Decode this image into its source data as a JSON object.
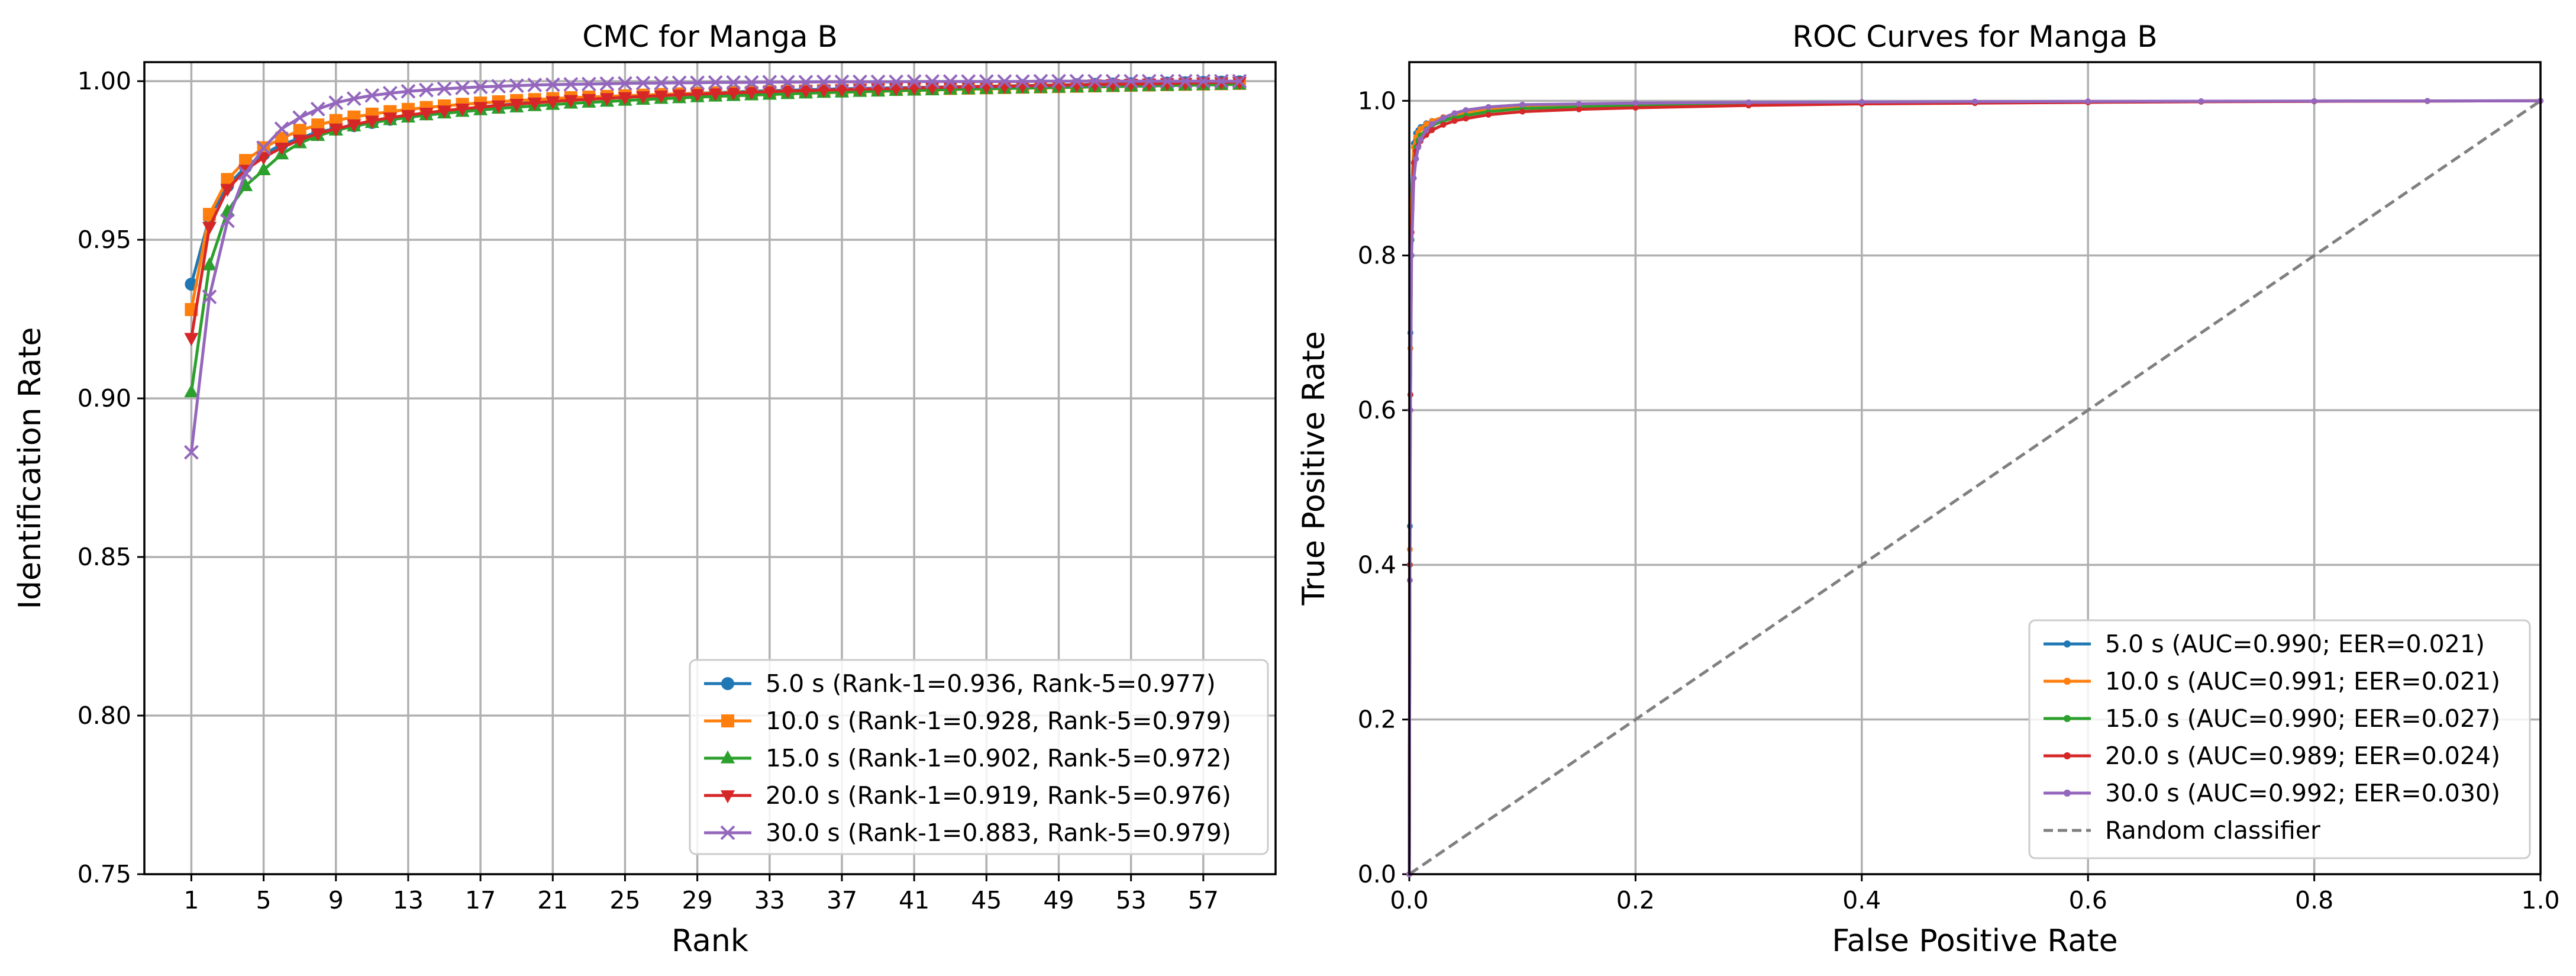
{
  "chart_data": [
    {
      "type": "line",
      "title": "CMC for Manga B",
      "xlabel": "Rank",
      "ylabel": "Identification Rate",
      "xlim": [
        -1.6,
        61.0
      ],
      "ylim": [
        0.75,
        1.006
      ],
      "xticks": [
        1,
        5,
        9,
        13,
        17,
        21,
        25,
        29,
        33,
        37,
        41,
        45,
        49,
        53,
        57
      ],
      "yticks": [
        0.75,
        0.8,
        0.85,
        0.9,
        0.95,
        1.0
      ],
      "ytick_labels": [
        "0.75",
        "0.80",
        "0.85",
        "0.90",
        "0.95",
        "1.00"
      ],
      "grid": true,
      "legend_position": "lower-right",
      "x": [
        1,
        2,
        3,
        4,
        5,
        6,
        7,
        8,
        9,
        10,
        11,
        12,
        13,
        14,
        15,
        16,
        17,
        18,
        19,
        20,
        21,
        22,
        23,
        24,
        25,
        26,
        27,
        28,
        29,
        30,
        31,
        32,
        33,
        34,
        35,
        36,
        37,
        38,
        39,
        40,
        41,
        42,
        43,
        44,
        45,
        46,
        47,
        48,
        49,
        50,
        51,
        52,
        53,
        54,
        55,
        56,
        57,
        58,
        59
      ],
      "series": [
        {
          "name": "5.0 s (Rank-1=0.936, Rank-5=0.977)",
          "color": "#1f77b4",
          "marker": "circle",
          "values": [
            0.936,
            0.957,
            0.967,
            0.973,
            0.977,
            0.98,
            0.982,
            0.984,
            0.985,
            0.986,
            0.987,
            0.988,
            0.989,
            0.9898,
            0.9905,
            0.9912,
            0.9918,
            0.9924,
            0.9929,
            0.9934,
            0.9938,
            0.9942,
            0.9946,
            0.9949,
            0.9952,
            0.9955,
            0.9958,
            0.996,
            0.9962,
            0.9964,
            0.9966,
            0.9968,
            0.997,
            0.9971,
            0.9973,
            0.9974,
            0.9976,
            0.9977,
            0.9978,
            0.9979,
            0.998,
            0.9981,
            0.9982,
            0.9983,
            0.9984,
            0.9985,
            0.9986,
            0.9987,
            0.9988,
            0.9989,
            0.999,
            0.9991,
            0.9992,
            0.9993,
            0.9994,
            0.9995,
            0.9996,
            0.9997,
            0.9998
          ]
        },
        {
          "name": "10.0 s (Rank-1=0.928, Rank-5=0.979)",
          "color": "#ff7f0e",
          "marker": "square",
          "values": [
            0.928,
            0.958,
            0.969,
            0.975,
            0.979,
            0.982,
            0.9845,
            0.9862,
            0.9876,
            0.9887,
            0.9896,
            0.9904,
            0.9911,
            0.9917,
            0.9922,
            0.9927,
            0.9931,
            0.9935,
            0.9939,
            0.9942,
            0.9945,
            0.9948,
            0.995,
            0.9952,
            0.9954,
            0.9956,
            0.9958,
            0.996,
            0.9961,
            0.9963,
            0.9964,
            0.9965,
            0.9967,
            0.9968,
            0.9969,
            0.997,
            0.9971,
            0.9972,
            0.9973,
            0.9974,
            0.9975,
            0.9976,
            0.9977,
            0.9978,
            0.9979,
            0.998,
            0.9981,
            0.9982,
            0.9983,
            0.9984,
            0.9985,
            0.9986,
            0.9987,
            0.9988,
            0.9989,
            0.999,
            0.9991,
            0.9992,
            0.9993
          ]
        },
        {
          "name": "15.0 s (Rank-1=0.902, Rank-5=0.972)",
          "color": "#2ca02c",
          "marker": "triangle-up",
          "values": [
            0.902,
            0.942,
            0.959,
            0.967,
            0.972,
            0.977,
            0.9805,
            0.9828,
            0.9845,
            0.9858,
            0.9869,
            0.9878,
            0.9886,
            0.9893,
            0.9899,
            0.9904,
            0.9909,
            0.9914,
            0.9918,
            0.9922,
            0.9926,
            0.993,
            0.9933,
            0.9936,
            0.9939,
            0.9942,
            0.9945,
            0.9947,
            0.995,
            0.9952,
            0.9954,
            0.9956,
            0.9958,
            0.996,
            0.9962,
            0.9964,
            0.9965,
            0.9967,
            0.9968,
            0.997,
            0.9971,
            0.9972,
            0.9974,
            0.9975,
            0.9976,
            0.9977,
            0.9978,
            0.9979,
            0.998,
            0.9981,
            0.9982,
            0.9983,
            0.9984,
            0.9985,
            0.9986,
            0.9987,
            0.9988,
            0.9989,
            0.999
          ]
        },
        {
          "name": "20.0 s (Rank-1=0.919, Rank-5=0.976)",
          "color": "#d62728",
          "marker": "triangle-down",
          "values": [
            0.919,
            0.954,
            0.966,
            0.972,
            0.976,
            0.979,
            0.9815,
            0.9835,
            0.985,
            0.9863,
            0.9875,
            0.9885,
            0.9893,
            0.99,
            0.9907,
            0.9913,
            0.9918,
            0.9923,
            0.9928,
            0.9932,
            0.9936,
            0.994,
            0.9943,
            0.9946,
            0.9949,
            0.9952,
            0.9954,
            0.9957,
            0.9959,
            0.9961,
            0.9963,
            0.9965,
            0.9967,
            0.9969,
            0.997,
            0.9972,
            0.9973,
            0.9975,
            0.9976,
            0.9977,
            0.9979,
            0.998,
            0.9981,
            0.9982,
            0.9983,
            0.9984,
            0.9985,
            0.9986,
            0.9987,
            0.9988,
            0.9989,
            0.999,
            0.9991,
            0.9992,
            0.9993,
            0.9994,
            0.9995,
            0.9996,
            0.9997
          ]
        },
        {
          "name": "30.0 s (Rank-1=0.883, Rank-5=0.979)",
          "color": "#9467bd",
          "marker": "x",
          "values": [
            0.883,
            0.932,
            0.956,
            0.971,
            0.979,
            0.985,
            0.9885,
            0.9912,
            0.9932,
            0.9945,
            0.9955,
            0.9962,
            0.9968,
            0.9972,
            0.9976,
            0.9979,
            0.9982,
            0.9984,
            0.9986,
            0.9988,
            0.9989,
            0.999,
            0.9991,
            0.9992,
            0.9993,
            0.9994,
            0.9994,
            0.9995,
            0.9995,
            0.9996,
            0.9996,
            0.9996,
            0.9997,
            0.9997,
            0.9997,
            0.9998,
            0.9998,
            0.9998,
            0.9998,
            0.9998,
            0.9999,
            0.9999,
            0.9999,
            0.9999,
            0.9999,
            0.9999,
            0.9999,
            1.0,
            1.0,
            1.0,
            1.0,
            1.0,
            1.0,
            1.0,
            1.0,
            1.0,
            1.0,
            1.0,
            1.0
          ]
        }
      ]
    },
    {
      "type": "line",
      "title": "ROC Curves for Manga B",
      "xlabel": "False Positive Rate",
      "ylabel": "True Positive Rate",
      "xlim": [
        0.0,
        1.0
      ],
      "ylim": [
        0.0,
        1.05
      ],
      "xticks": [
        0.0,
        0.2,
        0.4,
        0.6,
        0.8,
        1.0
      ],
      "xtick_labels": [
        "0.0",
        "0.2",
        "0.4",
        "0.6",
        "0.8",
        "1.0"
      ],
      "yticks": [
        0.0,
        0.2,
        0.4,
        0.6,
        0.8,
        1.0
      ],
      "ytick_labels": [
        "0.0",
        "0.2",
        "0.4",
        "0.6",
        "0.8",
        "1.0"
      ],
      "grid": true,
      "legend_position": "lower-right",
      "series": [
        {
          "name": "5.0 s (AUC=0.990; EER=0.021)",
          "color": "#1f77b4",
          "x": [
            0,
            0.0005,
            0.001,
            0.002,
            0.004,
            0.006,
            0.008,
            0.01,
            0.015,
            0.02,
            0.03,
            0.04,
            0.05,
            0.07,
            0.1,
            0.15,
            0.2,
            0.3,
            0.4,
            0.5,
            0.6,
            0.7,
            0.8,
            0.9,
            1.0
          ],
          "y": [
            0,
            0.45,
            0.7,
            0.88,
            0.945,
            0.958,
            0.962,
            0.966,
            0.971,
            0.974,
            0.978,
            0.981,
            0.984,
            0.988,
            0.991,
            0.993,
            0.994,
            0.996,
            0.997,
            0.998,
            0.9985,
            0.999,
            0.9995,
            0.9998,
            1.0
          ]
        },
        {
          "name": "10.0 s (AUC=0.991; EER=0.021)",
          "color": "#ff7f0e",
          "x": [
            0,
            0.0005,
            0.001,
            0.002,
            0.004,
            0.006,
            0.008,
            0.01,
            0.015,
            0.02,
            0.03,
            0.04,
            0.05,
            0.07,
            0.1,
            0.15,
            0.2,
            0.3,
            0.4,
            0.5,
            0.6,
            0.7,
            0.8,
            0.9,
            1.0
          ],
          "y": [
            0,
            0.42,
            0.68,
            0.86,
            0.94,
            0.953,
            0.959,
            0.964,
            0.97,
            0.974,
            0.979,
            0.982,
            0.985,
            0.989,
            0.992,
            0.994,
            0.995,
            0.996,
            0.997,
            0.998,
            0.9985,
            0.999,
            0.9995,
            0.9998,
            1.0
          ]
        },
        {
          "name": "15.0 s (AUC=0.990; EER=0.027)",
          "color": "#2ca02c",
          "x": [
            0,
            0.0005,
            0.001,
            0.002,
            0.004,
            0.006,
            0.008,
            0.01,
            0.015,
            0.02,
            0.03,
            0.04,
            0.05,
            0.07,
            0.1,
            0.15,
            0.2,
            0.3,
            0.4,
            0.5,
            0.6,
            0.7,
            0.8,
            0.9,
            1.0
          ],
          "y": [
            0,
            0.4,
            0.62,
            0.82,
            0.92,
            0.94,
            0.949,
            0.955,
            0.963,
            0.968,
            0.974,
            0.978,
            0.981,
            0.986,
            0.99,
            0.992,
            0.994,
            0.996,
            0.997,
            0.998,
            0.9985,
            0.999,
            0.9995,
            0.9998,
            1.0
          ]
        },
        {
          "name": "20.0 s (AUC=0.989; EER=0.024)",
          "color": "#d62728",
          "x": [
            0,
            0.0005,
            0.001,
            0.002,
            0.004,
            0.006,
            0.008,
            0.01,
            0.015,
            0.02,
            0.03,
            0.04,
            0.05,
            0.07,
            0.1,
            0.15,
            0.2,
            0.3,
            0.4,
            0.5,
            0.6,
            0.7,
            0.8,
            0.9,
            1.0
          ],
          "y": [
            0,
            0.4,
            0.62,
            0.83,
            0.92,
            0.935,
            0.942,
            0.948,
            0.956,
            0.962,
            0.969,
            0.974,
            0.977,
            0.982,
            0.986,
            0.989,
            0.991,
            0.994,
            0.996,
            0.997,
            0.998,
            0.9988,
            0.9993,
            0.9997,
            1.0
          ]
        },
        {
          "name": "30.0 s (AUC=0.992; EER=0.030)",
          "color": "#9467bd",
          "x": [
            0,
            0.0005,
            0.001,
            0.002,
            0.004,
            0.006,
            0.008,
            0.01,
            0.015,
            0.02,
            0.03,
            0.04,
            0.05,
            0.07,
            0.1,
            0.15,
            0.2,
            0.3,
            0.4,
            0.5,
            0.6,
            0.7,
            0.8,
            0.9,
            1.0
          ],
          "y": [
            0,
            0.38,
            0.6,
            0.8,
            0.9,
            0.925,
            0.94,
            0.95,
            0.962,
            0.97,
            0.978,
            0.984,
            0.988,
            0.992,
            0.995,
            0.996,
            0.997,
            0.998,
            0.9985,
            0.999,
            0.9993,
            0.9995,
            0.9997,
            0.9999,
            1.0
          ]
        },
        {
          "name": "Random classifier",
          "color": "#808080",
          "dashed": true,
          "x": [
            0,
            1
          ],
          "y": [
            0,
            1
          ]
        }
      ]
    }
  ]
}
